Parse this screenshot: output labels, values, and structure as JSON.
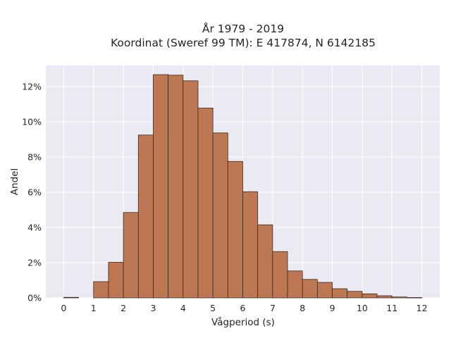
{
  "chart_data": {
    "type": "bar",
    "title": "År 1979 - 2019",
    "subtitle": "Koordinat (Sweref 99 TM): E 417874, N 6142185",
    "xlabel": "Vågperiod (s)",
    "ylabel": "Andel",
    "xlim": [
      -0.6,
      12.6
    ],
    "ylim": [
      0,
      0.132
    ],
    "x_ticks": [
      0,
      1,
      2,
      3,
      4,
      5,
      6,
      7,
      8,
      9,
      10,
      11,
      12
    ],
    "x_tick_labels": [
      "0",
      "1",
      "2",
      "3",
      "4",
      "5",
      "6",
      "7",
      "8",
      "9",
      "10",
      "11",
      "12"
    ],
    "y_ticks": [
      0,
      0.02,
      0.04,
      0.06,
      0.08,
      0.1,
      0.12
    ],
    "y_tick_labels": [
      "0%",
      "2%",
      "4%",
      "6%",
      "8%",
      "10%",
      "12%"
    ],
    "bin_width": 0.5,
    "bin_starts": [
      0,
      0.5,
      1,
      1.5,
      2,
      2.5,
      3,
      3.5,
      4,
      4.5,
      5,
      5.5,
      6,
      6.5,
      7,
      7.5,
      8,
      8.5,
      9,
      9.5,
      10,
      10.5,
      11,
      11.5
    ],
    "values": [
      0.0003,
      0,
      0.0092,
      0.0202,
      0.0485,
      0.0925,
      0.1268,
      0.1265,
      0.1233,
      0.1078,
      0.0937,
      0.0775,
      0.0603,
      0.0415,
      0.0263,
      0.0153,
      0.0105,
      0.0088,
      0.0052,
      0.0037,
      0.0023,
      0.0012,
      0.0005,
      0.0002
    ],
    "grid": true,
    "bar_color": "#b96e45",
    "background_color": "#eaeaf2"
  }
}
